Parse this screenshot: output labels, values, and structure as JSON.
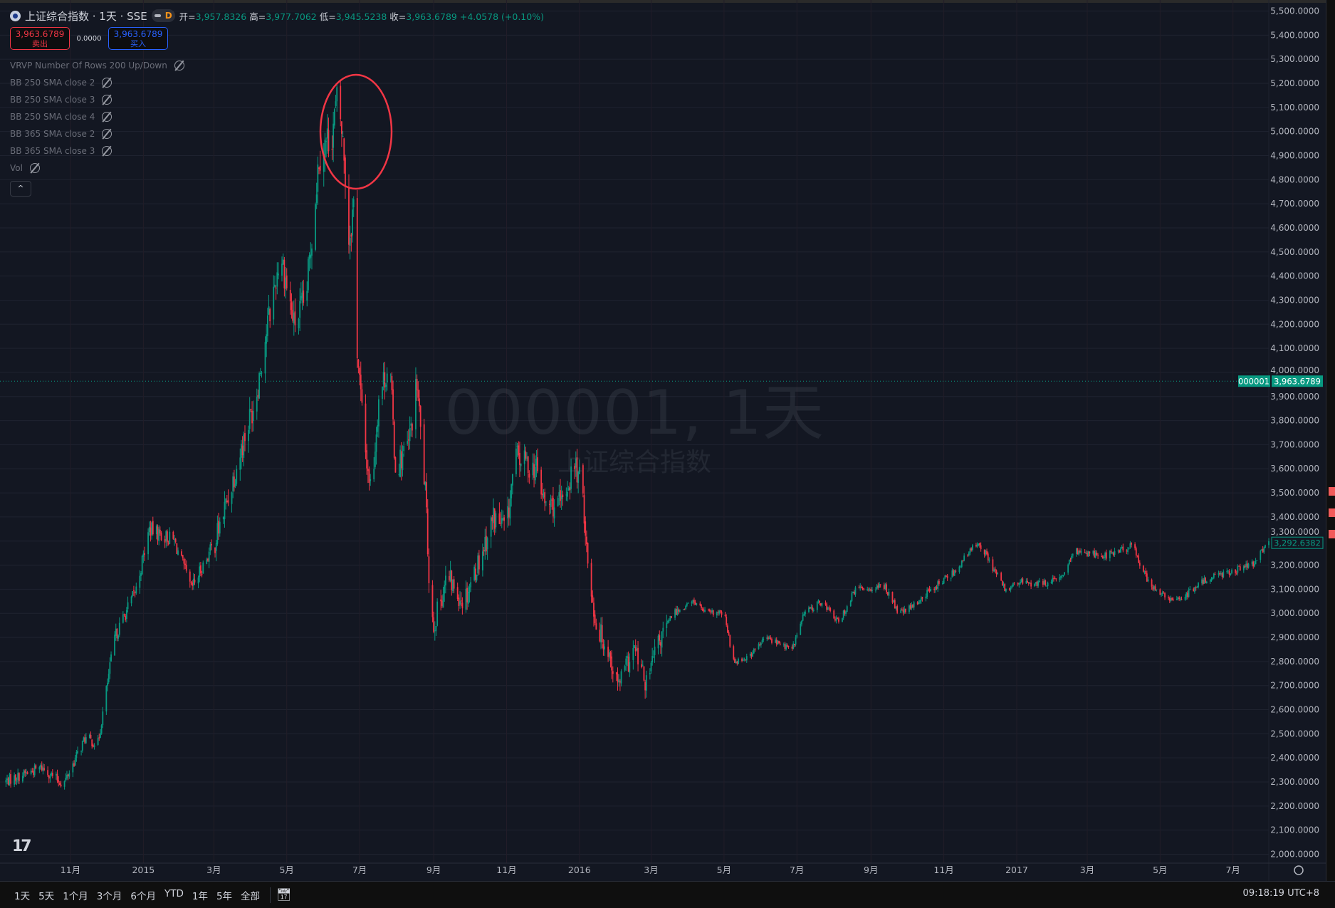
{
  "header": {
    "symbol_title": "上证综合指数 · 1天 · SSE",
    "interval_badge": "D",
    "ohlc": [
      {
        "label": "开=",
        "value": "3,957.8326"
      },
      {
        "label": "高=",
        "value": "3,977.7062"
      },
      {
        "label": "低=",
        "value": "3,945.5238"
      },
      {
        "label": "收=",
        "value": "3,963.6789"
      }
    ],
    "change": "+4.0578 (+0.10%)",
    "sell_price": "3,963.6789",
    "sell_label": "卖出",
    "spread": "0.0000",
    "buy_price": "3,963.6789",
    "buy_label": "买入"
  },
  "studies": [
    "VRVP Number Of Rows 200 Up/Down",
    "BB 250 SMA close 2",
    "BB 250 SMA close 3",
    "BB 250 SMA close 4",
    "BB 365 SMA close 2",
    "BB 365 SMA close 3",
    "Vol"
  ],
  "collapse_label": "^",
  "watermark": {
    "line1": "000001, 1天",
    "line2": "上证综合指数"
  },
  "price_label": {
    "symbol": "000001",
    "value": "3,963.6789"
  },
  "crosshair_label": "3,292.6382",
  "colors": {
    "up": "#089981",
    "down": "#f23645",
    "background": "#131722",
    "annotation": "#f23645"
  },
  "bottom_bar": {
    "ranges": [
      "1天",
      "5天",
      "1个月",
      "3个月",
      "6个月",
      "YTD",
      "1年",
      "5年",
      "全部"
    ],
    "clock": "09:18:19 UTC+8"
  },
  "chart_data": {
    "type": "candlestick",
    "symbol": "000001",
    "ylim": [
      2000,
      5500
    ],
    "yticks": [
      2000,
      2100,
      2200,
      2300,
      2400,
      2500,
      2600,
      2700,
      2800,
      2900,
      3000,
      3100,
      3200,
      3300,
      3400,
      3500,
      3600,
      3700,
      3800,
      3900,
      4000,
      4100,
      4200,
      4300,
      4400,
      4500,
      4600,
      4700,
      4800,
      4900,
      5000,
      5100,
      5200,
      5300,
      5400,
      5500
    ],
    "xticks": [
      {
        "label": "11月",
        "date": "2014-11-01"
      },
      {
        "label": "2015",
        "date": "2015-01-01"
      },
      {
        "label": "3月",
        "date": "2015-03-01"
      },
      {
        "label": "5月",
        "date": "2015-05-01"
      },
      {
        "label": "7月",
        "date": "2015-07-01"
      },
      {
        "label": "9月",
        "date": "2015-09-01"
      },
      {
        "label": "11月",
        "date": "2015-11-01"
      },
      {
        "label": "2016",
        "date": "2016-01-01"
      },
      {
        "label": "3月",
        "date": "2016-03-01"
      },
      {
        "label": "5月",
        "date": "2016-05-01"
      },
      {
        "label": "7月",
        "date": "2016-07-01"
      },
      {
        "label": "9月",
        "date": "2016-09-01"
      },
      {
        "label": "11月",
        "date": "2016-11-01"
      },
      {
        "label": "2017",
        "date": "2017-01-01"
      },
      {
        "label": "3月",
        "date": "2017-03-01"
      },
      {
        "label": "5月",
        "date": "2017-05-01"
      },
      {
        "label": "7月",
        "date": "2017-07-01"
      }
    ],
    "approx_close_path": [
      [
        "2014-09-06",
        2300
      ],
      [
        "2014-10-08",
        2360
      ],
      [
        "2014-10-26",
        2290
      ],
      [
        "2014-11-13",
        2480
      ],
      [
        "2014-11-24",
        2460
      ],
      [
        "2014-12-08",
        2900
      ],
      [
        "2014-12-26",
        3100
      ],
      [
        "2015-01-06",
        3350
      ],
      [
        "2015-01-27",
        3300
      ],
      [
        "2015-02-10",
        3100
      ],
      [
        "2015-03-02",
        3300
      ],
      [
        "2015-03-11",
        3450
      ],
      [
        "2015-04-05",
        3900
      ],
      [
        "2015-04-15",
        4200
      ],
      [
        "2015-04-26",
        4500
      ],
      [
        "2015-05-07",
        4200
      ],
      [
        "2015-05-17",
        4300
      ],
      [
        "2015-05-28",
        4900
      ],
      [
        "2015-06-08",
        5000
      ],
      [
        "2015-06-13",
        5150
      ],
      [
        "2015-06-18",
        4900
      ],
      [
        "2015-06-22",
        4550
      ],
      [
        "2015-06-26",
        4700
      ],
      [
        "2015-06-29",
        4100
      ],
      [
        "2015-07-05",
        3700
      ],
      [
        "2015-07-11",
        3500
      ],
      [
        "2015-07-17",
        3900
      ],
      [
        "2015-07-26",
        4050
      ],
      [
        "2015-07-31",
        3600
      ],
      [
        "2015-08-11",
        3700
      ],
      [
        "2015-08-18",
        3950
      ],
      [
        "2015-08-25",
        3500
      ],
      [
        "2015-08-29",
        3050
      ],
      [
        "2015-09-01",
        2950
      ],
      [
        "2015-09-12",
        3150
      ],
      [
        "2015-09-26",
        3050
      ],
      [
        "2015-10-11",
        3250
      ],
      [
        "2015-10-21",
        3400
      ],
      [
        "2015-11-01",
        3350
      ],
      [
        "2015-11-08",
        3650
      ],
      [
        "2015-11-26",
        3600
      ],
      [
        "2015-12-03",
        3450
      ],
      [
        "2015-12-17",
        3450
      ],
      [
        "2015-12-28",
        3620
      ],
      [
        "2016-01-04",
        3500
      ],
      [
        "2016-01-08",
        3200
      ],
      [
        "2016-01-15",
        2950
      ],
      [
        "2016-01-25",
        2850
      ],
      [
        "2016-02-02",
        2700
      ],
      [
        "2016-02-16",
        2850
      ],
      [
        "2016-02-26",
        2700
      ],
      [
        "2016-03-05",
        2850
      ],
      [
        "2016-03-19",
        3000
      ],
      [
        "2016-04-06",
        3050
      ],
      [
        "2016-04-16",
        3000
      ],
      [
        "2016-05-01",
        3000
      ],
      [
        "2016-05-09",
        2800
      ],
      [
        "2016-05-22",
        2820
      ],
      [
        "2016-06-05",
        2900
      ],
      [
        "2016-06-27",
        2850
      ],
      [
        "2016-07-07",
        3000
      ],
      [
        "2016-07-22",
        3050
      ],
      [
        "2016-08-05",
        2960
      ],
      [
        "2016-08-19",
        3100
      ],
      [
        "2016-09-13",
        3110
      ],
      [
        "2016-09-24",
        3000
      ],
      [
        "2016-10-04",
        3020
      ],
      [
        "2016-10-19",
        3090
      ],
      [
        "2016-11-09",
        3170
      ],
      [
        "2016-11-30",
        3300
      ],
      [
        "2016-12-11",
        3200
      ],
      [
        "2016-12-22",
        3100
      ],
      [
        "2017-01-05",
        3130
      ],
      [
        "2017-01-19",
        3120
      ],
      [
        "2017-02-06",
        3140
      ],
      [
        "2017-02-20",
        3260
      ],
      [
        "2017-03-17",
        3240
      ],
      [
        "2017-04-08",
        3280
      ],
      [
        "2017-04-22",
        3120
      ],
      [
        "2017-05-10",
        3050
      ],
      [
        "2017-05-24",
        3080
      ],
      [
        "2017-06-11",
        3150
      ],
      [
        "2017-07-17",
        3200
      ],
      [
        "2017-07-31",
        3290
      ]
    ]
  }
}
